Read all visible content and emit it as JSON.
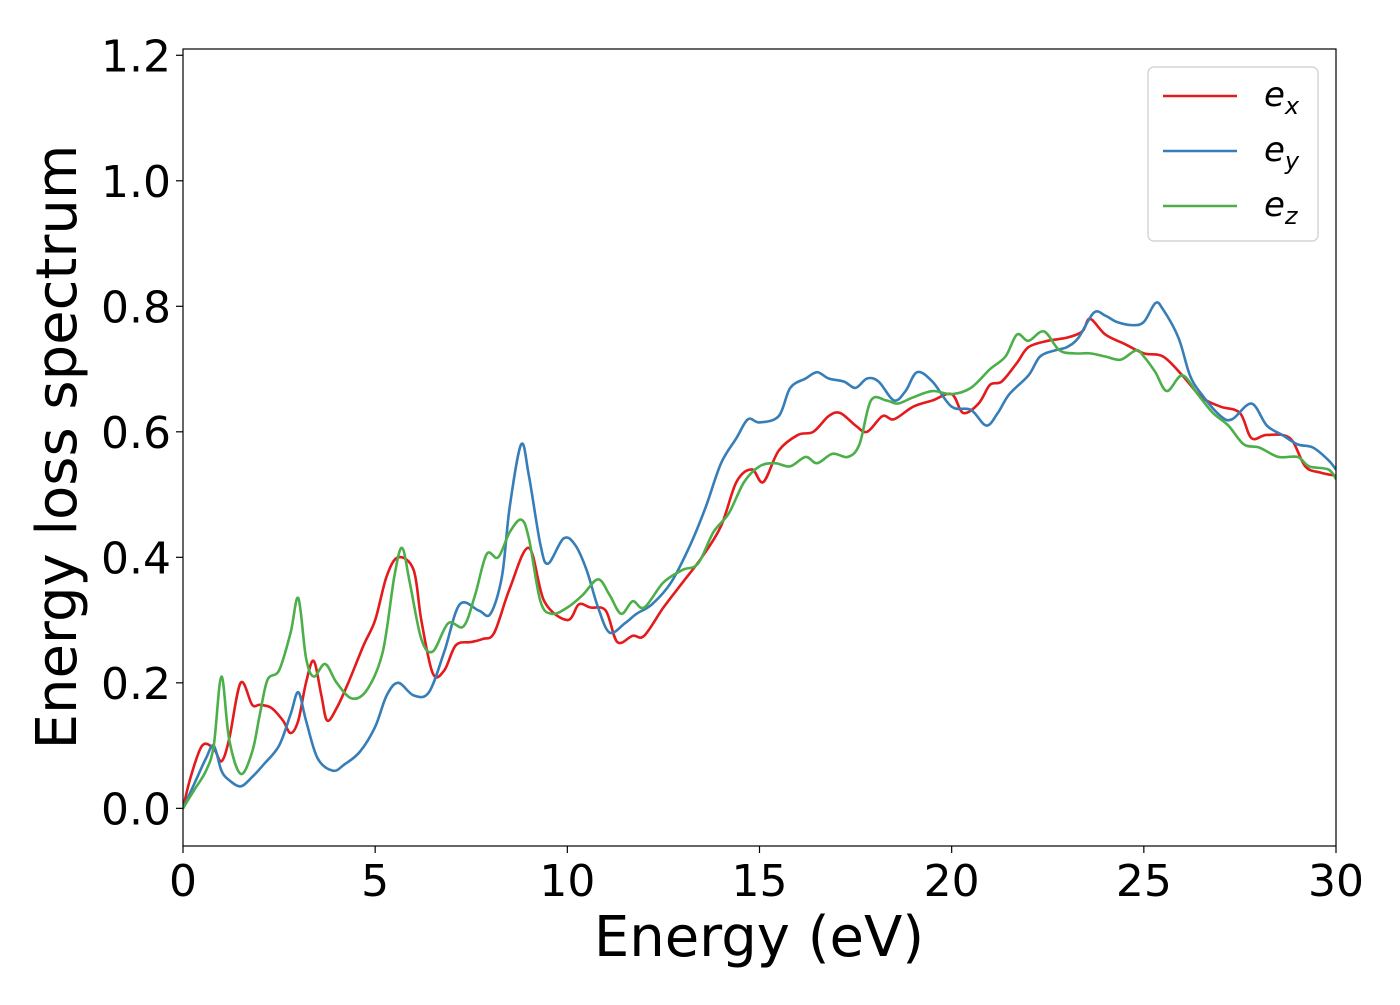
{
  "chart_data": {
    "type": "line",
    "title": "",
    "xlabel": "Energy (eV)",
    "ylabel": "Energy loss spectrum",
    "xlim": [
      0,
      30
    ],
    "ylim": [
      -0.06,
      1.21
    ],
    "xticks": [
      0,
      5,
      10,
      15,
      20,
      25,
      30
    ],
    "yticks": [
      0.0,
      0.2,
      0.4,
      0.6,
      0.8,
      1.0,
      1.2
    ],
    "xtick_labels": [
      "0",
      "5",
      "10",
      "15",
      "20",
      "25",
      "30"
    ],
    "ytick_labels": [
      "0.0",
      "0.2",
      "0.4",
      "0.6",
      "0.8",
      "1.0",
      "1.2"
    ],
    "grid": false,
    "legend_position": "top-right",
    "series": [
      {
        "name": "e_x",
        "legend_base": "e",
        "legend_sub": "x",
        "color": "#e41a1c",
        "points": [
          [
            0,
            0
          ],
          [
            0.2,
            0.05
          ],
          [
            0.5,
            0.1
          ],
          [
            0.8,
            0.095
          ],
          [
            1.0,
            0.075
          ],
          [
            1.2,
            0.11
          ],
          [
            1.5,
            0.2
          ],
          [
            1.8,
            0.165
          ],
          [
            2.0,
            0.165
          ],
          [
            2.3,
            0.16
          ],
          [
            2.6,
            0.14
          ],
          [
            2.8,
            0.12
          ],
          [
            3.0,
            0.14
          ],
          [
            3.2,
            0.2
          ],
          [
            3.4,
            0.235
          ],
          [
            3.6,
            0.18
          ],
          [
            3.75,
            0.14
          ],
          [
            4.0,
            0.16
          ],
          [
            4.3,
            0.2
          ],
          [
            4.7,
            0.26
          ],
          [
            5.0,
            0.3
          ],
          [
            5.3,
            0.37
          ],
          [
            5.6,
            0.4
          ],
          [
            6.0,
            0.38
          ],
          [
            6.2,
            0.3
          ],
          [
            6.5,
            0.215
          ],
          [
            6.8,
            0.22
          ],
          [
            7.1,
            0.26
          ],
          [
            7.5,
            0.265
          ],
          [
            7.8,
            0.27
          ],
          [
            8.1,
            0.28
          ],
          [
            8.5,
            0.35
          ],
          [
            9.0,
            0.415
          ],
          [
            9.4,
            0.33
          ],
          [
            10.0,
            0.3
          ],
          [
            10.3,
            0.325
          ],
          [
            10.6,
            0.32
          ],
          [
            11.0,
            0.315
          ],
          [
            11.3,
            0.265
          ],
          [
            11.7,
            0.275
          ],
          [
            12.0,
            0.275
          ],
          [
            12.5,
            0.32
          ],
          [
            13.0,
            0.36
          ],
          [
            13.5,
            0.4
          ],
          [
            14.0,
            0.45
          ],
          [
            14.4,
            0.52
          ],
          [
            14.8,
            0.54
          ],
          [
            15.1,
            0.52
          ],
          [
            15.5,
            0.57
          ],
          [
            16.0,
            0.595
          ],
          [
            16.4,
            0.6
          ],
          [
            16.8,
            0.625
          ],
          [
            17.1,
            0.63
          ],
          [
            17.5,
            0.61
          ],
          [
            17.8,
            0.6
          ],
          [
            18.2,
            0.625
          ],
          [
            18.5,
            0.62
          ],
          [
            19.0,
            0.64
          ],
          [
            19.5,
            0.65
          ],
          [
            20.0,
            0.66
          ],
          [
            20.3,
            0.63
          ],
          [
            20.7,
            0.645
          ],
          [
            21.0,
            0.675
          ],
          [
            21.3,
            0.68
          ],
          [
            21.7,
            0.71
          ],
          [
            22.0,
            0.735
          ],
          [
            22.5,
            0.745
          ],
          [
            23.0,
            0.75
          ],
          [
            23.4,
            0.76
          ],
          [
            23.6,
            0.78
          ],
          [
            24.0,
            0.755
          ],
          [
            24.5,
            0.74
          ],
          [
            25.0,
            0.725
          ],
          [
            25.5,
            0.72
          ],
          [
            26.0,
            0.69
          ],
          [
            26.5,
            0.655
          ],
          [
            27.0,
            0.64
          ],
          [
            27.5,
            0.63
          ],
          [
            27.8,
            0.59
          ],
          [
            28.2,
            0.595
          ],
          [
            28.8,
            0.59
          ],
          [
            29.2,
            0.545
          ],
          [
            29.6,
            0.535
          ],
          [
            30.0,
            0.53
          ]
        ]
      },
      {
        "name": "e_y",
        "legend_base": "e",
        "legend_sub": "y",
        "color": "#377eb8",
        "points": [
          [
            0,
            0
          ],
          [
            0.3,
            0.04
          ],
          [
            0.6,
            0.08
          ],
          [
            0.8,
            0.1
          ],
          [
            1.0,
            0.06
          ],
          [
            1.2,
            0.045
          ],
          [
            1.5,
            0.035
          ],
          [
            1.8,
            0.05
          ],
          [
            2.1,
            0.07
          ],
          [
            2.5,
            0.1
          ],
          [
            2.8,
            0.15
          ],
          [
            3.0,
            0.185
          ],
          [
            3.2,
            0.14
          ],
          [
            3.5,
            0.08
          ],
          [
            3.9,
            0.06
          ],
          [
            4.2,
            0.07
          ],
          [
            4.6,
            0.09
          ],
          [
            5.0,
            0.13
          ],
          [
            5.3,
            0.18
          ],
          [
            5.6,
            0.2
          ],
          [
            6.0,
            0.18
          ],
          [
            6.4,
            0.185
          ],
          [
            6.8,
            0.25
          ],
          [
            7.2,
            0.325
          ],
          [
            7.7,
            0.315
          ],
          [
            8.0,
            0.31
          ],
          [
            8.3,
            0.37
          ],
          [
            8.5,
            0.48
          ],
          [
            8.8,
            0.58
          ],
          [
            9.0,
            0.53
          ],
          [
            9.3,
            0.42
          ],
          [
            9.5,
            0.39
          ],
          [
            9.9,
            0.43
          ],
          [
            10.2,
            0.42
          ],
          [
            10.5,
            0.38
          ],
          [
            10.8,
            0.32
          ],
          [
            11.1,
            0.28
          ],
          [
            11.5,
            0.295
          ],
          [
            11.8,
            0.31
          ],
          [
            12.2,
            0.325
          ],
          [
            12.7,
            0.36
          ],
          [
            13.2,
            0.42
          ],
          [
            13.6,
            0.48
          ],
          [
            14.0,
            0.55
          ],
          [
            14.4,
            0.59
          ],
          [
            14.7,
            0.62
          ],
          [
            15.0,
            0.615
          ],
          [
            15.5,
            0.625
          ],
          [
            15.8,
            0.67
          ],
          [
            16.2,
            0.685
          ],
          [
            16.5,
            0.695
          ],
          [
            16.8,
            0.685
          ],
          [
            17.2,
            0.68
          ],
          [
            17.5,
            0.67
          ],
          [
            17.8,
            0.685
          ],
          [
            18.1,
            0.68
          ],
          [
            18.5,
            0.65
          ],
          [
            18.8,
            0.665
          ],
          [
            19.1,
            0.695
          ],
          [
            19.5,
            0.68
          ],
          [
            20.0,
            0.64
          ],
          [
            20.5,
            0.635
          ],
          [
            20.9,
            0.61
          ],
          [
            21.2,
            0.63
          ],
          [
            21.5,
            0.66
          ],
          [
            22.0,
            0.69
          ],
          [
            22.3,
            0.72
          ],
          [
            22.7,
            0.73
          ],
          [
            23.0,
            0.735
          ],
          [
            23.3,
            0.75
          ],
          [
            23.7,
            0.79
          ],
          [
            24.0,
            0.785
          ],
          [
            24.3,
            0.775
          ],
          [
            24.7,
            0.77
          ],
          [
            25.0,
            0.775
          ],
          [
            25.3,
            0.805
          ],
          [
            25.5,
            0.795
          ],
          [
            25.9,
            0.75
          ],
          [
            26.2,
            0.69
          ],
          [
            26.5,
            0.66
          ],
          [
            27.0,
            0.625
          ],
          [
            27.3,
            0.62
          ],
          [
            27.8,
            0.645
          ],
          [
            28.2,
            0.61
          ],
          [
            28.6,
            0.595
          ],
          [
            29.0,
            0.58
          ],
          [
            29.4,
            0.575
          ],
          [
            29.8,
            0.555
          ],
          [
            30.0,
            0.54
          ]
        ]
      },
      {
        "name": "e_z",
        "legend_base": "e",
        "legend_sub": "z",
        "color": "#4daf4a",
        "points": [
          [
            0,
            0
          ],
          [
            0.3,
            0.03
          ],
          [
            0.6,
            0.06
          ],
          [
            0.8,
            0.1
          ],
          [
            1.0,
            0.21
          ],
          [
            1.2,
            0.11
          ],
          [
            1.5,
            0.055
          ],
          [
            1.8,
            0.09
          ],
          [
            2.0,
            0.15
          ],
          [
            2.2,
            0.205
          ],
          [
            2.5,
            0.22
          ],
          [
            2.8,
            0.28
          ],
          [
            3.0,
            0.335
          ],
          [
            3.2,
            0.24
          ],
          [
            3.4,
            0.21
          ],
          [
            3.7,
            0.23
          ],
          [
            4.0,
            0.2
          ],
          [
            4.4,
            0.175
          ],
          [
            4.8,
            0.19
          ],
          [
            5.2,
            0.25
          ],
          [
            5.5,
            0.37
          ],
          [
            5.7,
            0.415
          ],
          [
            5.9,
            0.36
          ],
          [
            6.2,
            0.27
          ],
          [
            6.5,
            0.25
          ],
          [
            6.9,
            0.295
          ],
          [
            7.3,
            0.29
          ],
          [
            7.6,
            0.34
          ],
          [
            7.9,
            0.405
          ],
          [
            8.2,
            0.4
          ],
          [
            8.5,
            0.44
          ],
          [
            8.8,
            0.46
          ],
          [
            9.0,
            0.43
          ],
          [
            9.3,
            0.33
          ],
          [
            9.6,
            0.31
          ],
          [
            10.0,
            0.32
          ],
          [
            10.4,
            0.34
          ],
          [
            10.8,
            0.365
          ],
          [
            11.1,
            0.34
          ],
          [
            11.4,
            0.31
          ],
          [
            11.7,
            0.33
          ],
          [
            12.0,
            0.32
          ],
          [
            12.5,
            0.36
          ],
          [
            13.0,
            0.38
          ],
          [
            13.4,
            0.39
          ],
          [
            13.8,
            0.44
          ],
          [
            14.2,
            0.47
          ],
          [
            14.6,
            0.52
          ],
          [
            15.0,
            0.545
          ],
          [
            15.4,
            0.55
          ],
          [
            15.8,
            0.545
          ],
          [
            16.2,
            0.56
          ],
          [
            16.5,
            0.55
          ],
          [
            16.9,
            0.565
          ],
          [
            17.3,
            0.56
          ],
          [
            17.6,
            0.58
          ],
          [
            17.9,
            0.65
          ],
          [
            18.3,
            0.65
          ],
          [
            18.6,
            0.645
          ],
          [
            19.0,
            0.655
          ],
          [
            19.5,
            0.665
          ],
          [
            20.0,
            0.66
          ],
          [
            20.5,
            0.67
          ],
          [
            21.0,
            0.7
          ],
          [
            21.4,
            0.72
          ],
          [
            21.7,
            0.755
          ],
          [
            22.0,
            0.745
          ],
          [
            22.4,
            0.76
          ],
          [
            22.8,
            0.73
          ],
          [
            23.2,
            0.725
          ],
          [
            23.6,
            0.725
          ],
          [
            24.0,
            0.72
          ],
          [
            24.4,
            0.715
          ],
          [
            24.8,
            0.73
          ],
          [
            25.0,
            0.72
          ],
          [
            25.3,
            0.695
          ],
          [
            25.6,
            0.665
          ],
          [
            26.0,
            0.69
          ],
          [
            26.4,
            0.66
          ],
          [
            26.8,
            0.63
          ],
          [
            27.2,
            0.61
          ],
          [
            27.6,
            0.58
          ],
          [
            28.0,
            0.575
          ],
          [
            28.5,
            0.56
          ],
          [
            29.0,
            0.56
          ],
          [
            29.3,
            0.545
          ],
          [
            29.8,
            0.54
          ],
          [
            30.0,
            0.525
          ]
        ]
      }
    ]
  }
}
